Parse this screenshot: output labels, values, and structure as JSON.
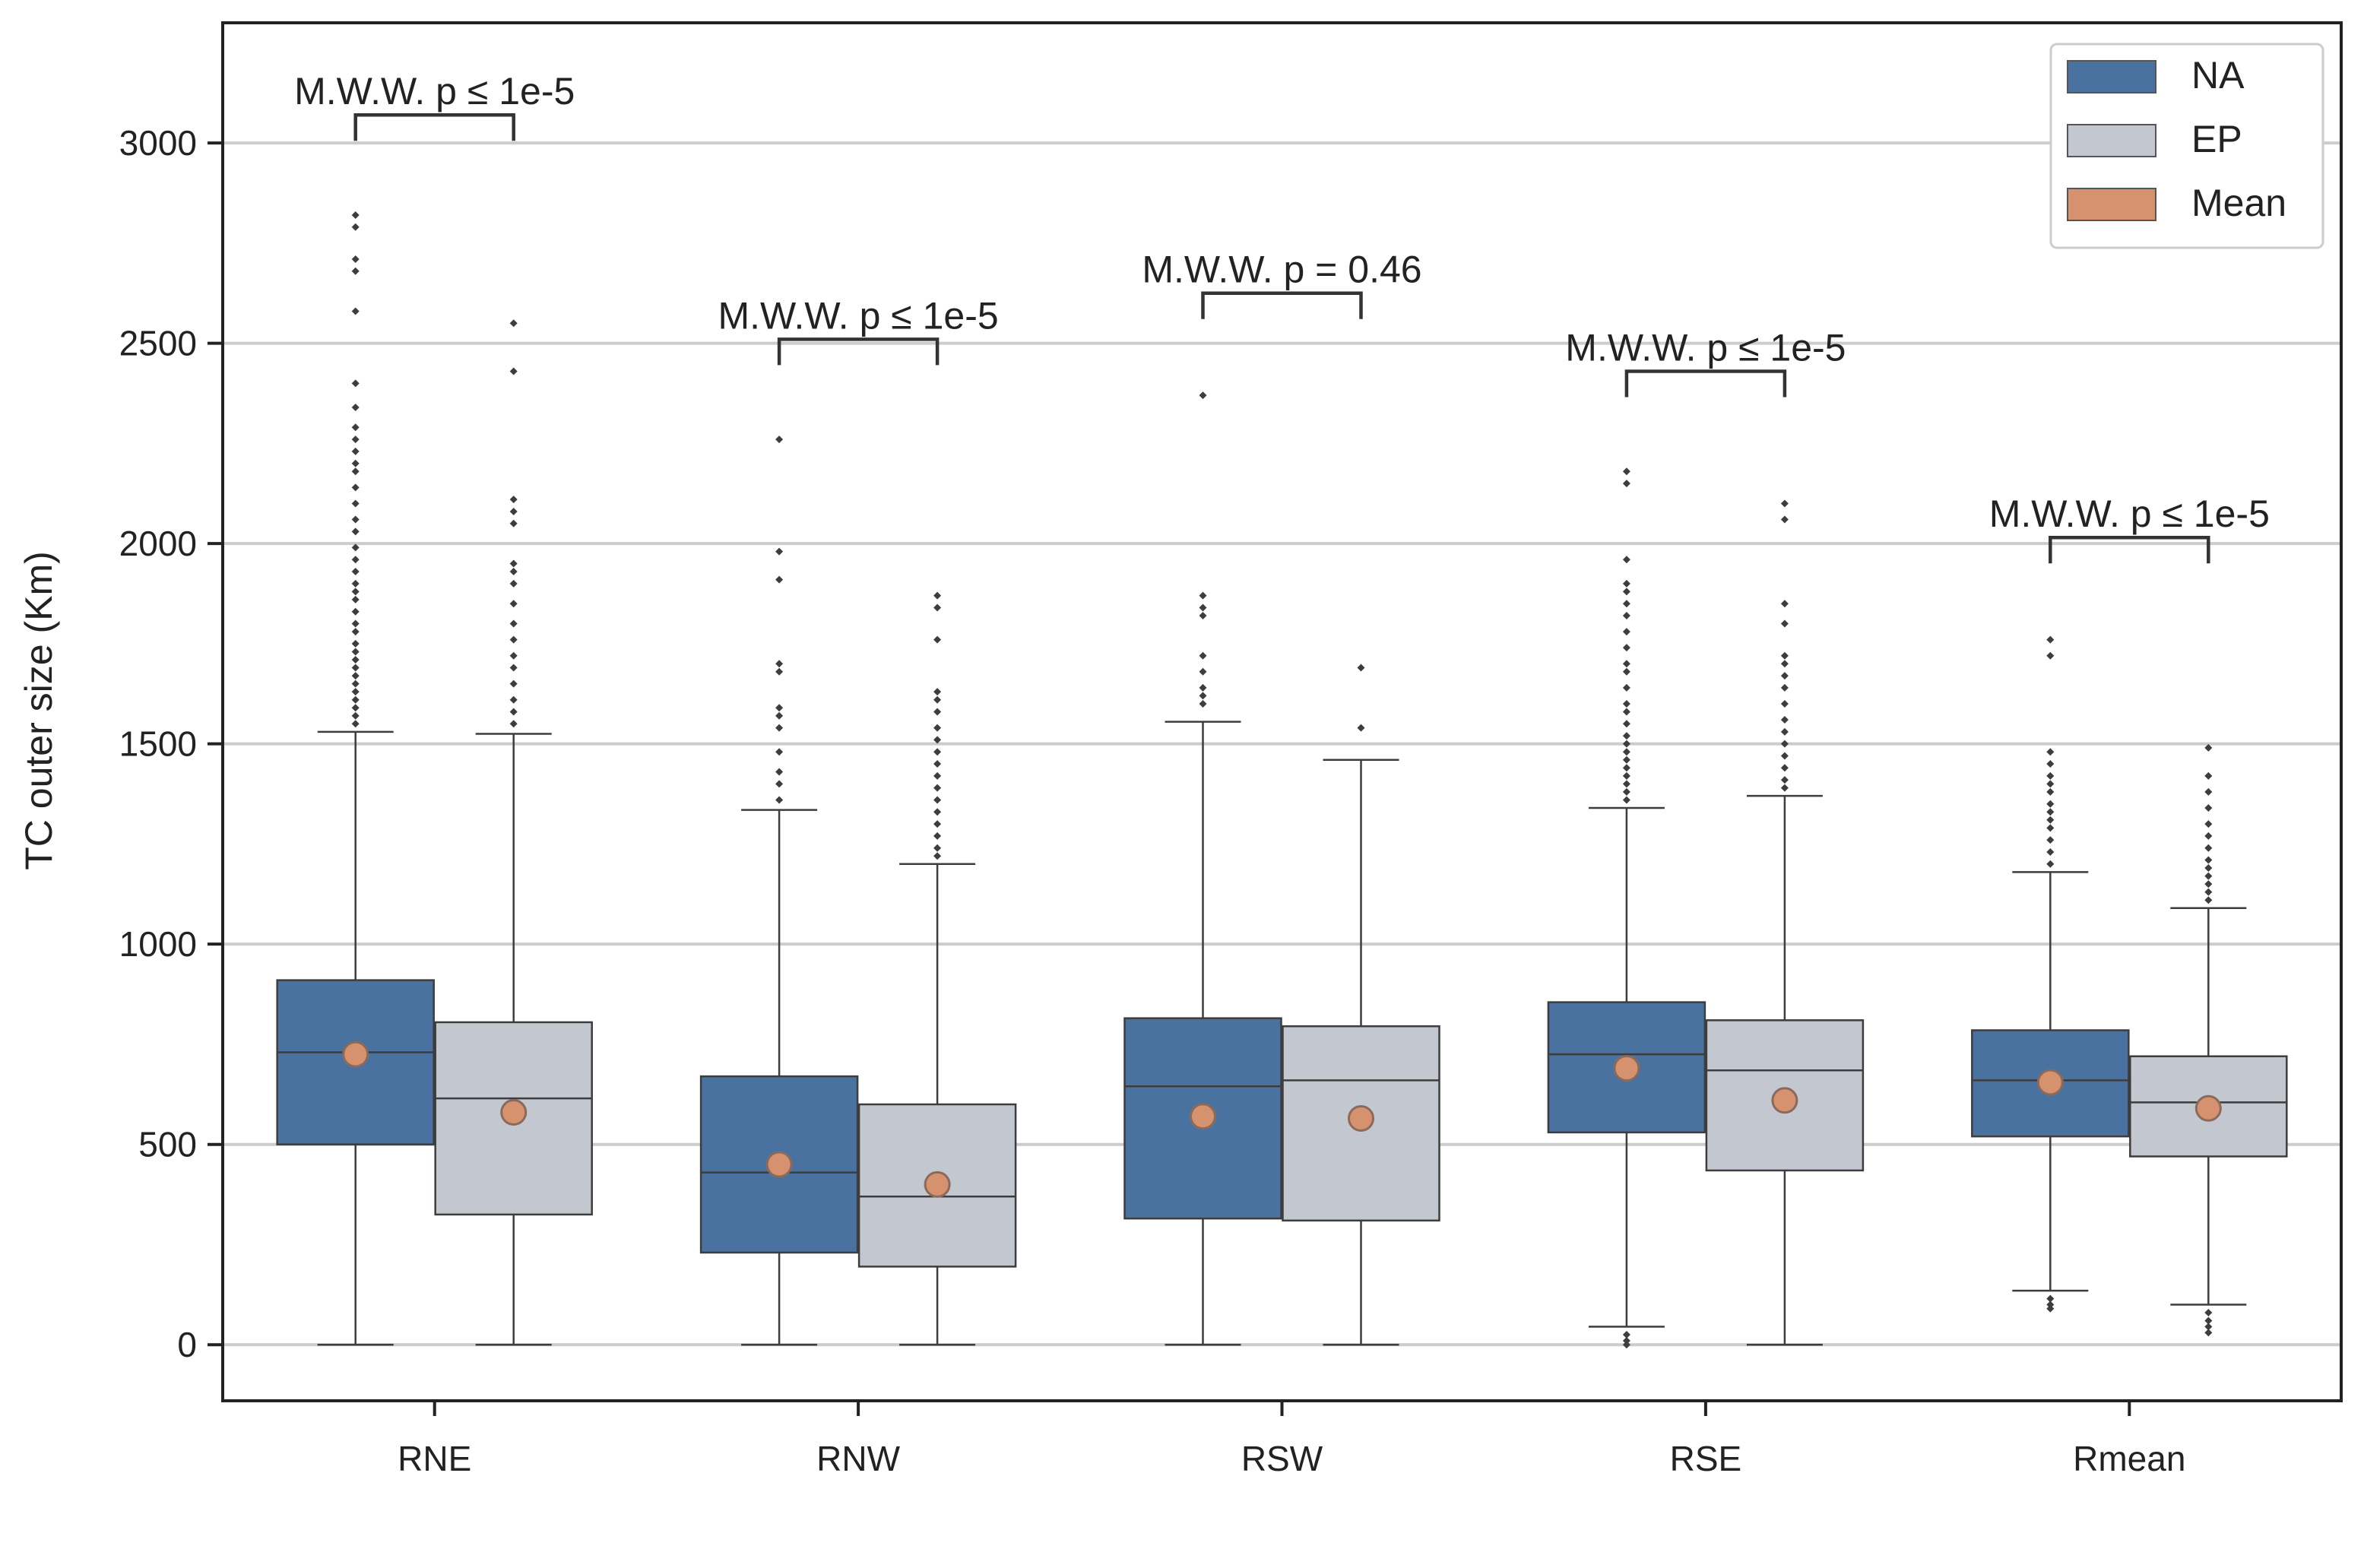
{
  "chart_data": {
    "type": "box",
    "title": "",
    "xlabel": "",
    "ylabel": "TC outer size (Km)",
    "ylim": [
      -140,
      3300
    ],
    "yticks": [
      0,
      500,
      1000,
      1500,
      2000,
      2500,
      3000
    ],
    "grid": "horizontal",
    "legend_position": "top-right",
    "categories": [
      "RNE",
      "RNW",
      "RSW",
      "RSE",
      "Rmean"
    ],
    "legend": [
      {
        "label": "NA",
        "color": "#4a72a0"
      },
      {
        "label": "EP",
        "color": "#c3c7d0"
      },
      {
        "label": "Mean",
        "color": "#d6926f"
      }
    ],
    "series": [
      {
        "name": "NA",
        "color": "#4a72a0",
        "boxes": [
          {
            "category": "RNE",
            "whisker_low": 0,
            "q1": 500,
            "median": 730,
            "q3": 910,
            "whisker_high": 1530,
            "mean": 725,
            "outliers": [
              1550,
              1570,
              1590,
              1610,
              1630,
              1650,
              1670,
              1690,
              1710,
              1730,
              1750,
              1780,
              1800,
              1830,
              1860,
              1880,
              1900,
              1930,
              1960,
              1990,
              2030,
              2060,
              2100,
              2140,
              2180,
              2200,
              2230,
              2260,
              2290,
              2340,
              2400,
              2580,
              2680,
              2710,
              2790,
              2820
            ]
          },
          {
            "category": "RNW",
            "whisker_low": 0,
            "q1": 230,
            "median": 430,
            "q3": 670,
            "whisker_high": 1335,
            "mean": 450,
            "outliers": [
              1360,
              1400,
              1430,
              1480,
              1540,
              1570,
              1590,
              1680,
              1700,
              1910,
              1980,
              2260
            ]
          },
          {
            "category": "RSW",
            "whisker_low": 0,
            "q1": 315,
            "median": 645,
            "q3": 815,
            "whisker_high": 1555,
            "mean": 570,
            "outliers": [
              1600,
              1620,
              1640,
              1680,
              1720,
              1820,
              1840,
              1870,
              2370
            ]
          },
          {
            "category": "RSE",
            "whisker_low": 45,
            "q1": 530,
            "median": 725,
            "q3": 855,
            "whisker_high": 1340,
            "mean": 690,
            "outliers": [
              0,
              10,
              25,
              1360,
              1380,
              1400,
              1420,
              1440,
              1460,
              1480,
              1500,
              1520,
              1550,
              1580,
              1600,
              1640,
              1680,
              1700,
              1740,
              1780,
              1820,
              1850,
              1880,
              1900,
              1960,
              2150,
              2180
            ]
          },
          {
            "category": "Rmean",
            "whisker_low": 135,
            "q1": 520,
            "median": 660,
            "q3": 785,
            "whisker_high": 1180,
            "mean": 655,
            "outliers": [
              90,
              100,
              115,
              1200,
              1230,
              1260,
              1290,
              1310,
              1330,
              1350,
              1380,
              1400,
              1420,
              1450,
              1480,
              1720,
              1760
            ]
          }
        ]
      },
      {
        "name": "EP",
        "color": "#c3c7d0",
        "boxes": [
          {
            "category": "RNE",
            "whisker_low": 0,
            "q1": 325,
            "median": 615,
            "q3": 805,
            "whisker_high": 1525,
            "mean": 580,
            "outliers": [
              1550,
              1580,
              1610,
              1650,
              1690,
              1720,
              1760,
              1800,
              1850,
              1900,
              1930,
              1950,
              2050,
              2080,
              2110,
              2430,
              2550
            ]
          },
          {
            "category": "RNW",
            "whisker_low": 0,
            "q1": 195,
            "median": 370,
            "q3": 600,
            "whisker_high": 1200,
            "mean": 400,
            "outliers": [
              1220,
              1240,
              1270,
              1300,
              1330,
              1360,
              1390,
              1420,
              1450,
              1480,
              1510,
              1540,
              1580,
              1610,
              1630,
              1760,
              1840,
              1870
            ]
          },
          {
            "category": "RSW",
            "whisker_low": 0,
            "q1": 310,
            "median": 660,
            "q3": 795,
            "whisker_high": 1460,
            "mean": 565,
            "outliers": [
              1540,
              1690
            ]
          },
          {
            "category": "RSE",
            "whisker_low": 0,
            "q1": 435,
            "median": 685,
            "q3": 810,
            "whisker_high": 1370,
            "mean": 610,
            "outliers": [
              1390,
              1410,
              1440,
              1470,
              1500,
              1530,
              1560,
              1600,
              1640,
              1670,
              1700,
              1720,
              1800,
              1850,
              2060,
              2100
            ]
          },
          {
            "category": "Rmean",
            "whisker_low": 100,
            "q1": 470,
            "median": 605,
            "q3": 720,
            "whisker_high": 1090,
            "mean": 590,
            "outliers": [
              30,
              45,
              60,
              80,
              1110,
              1130,
              1150,
              1170,
              1190,
              1210,
              1240,
              1270,
              1300,
              1340,
              1380,
              1420,
              1490
            ]
          }
        ]
      }
    ],
    "annotations": [
      {
        "category": "RNE",
        "text": "M.W.W. p ≤ 1e-5",
        "y": 3070
      },
      {
        "category": "RNW",
        "text": "M.W.W. p ≤ 1e-5",
        "y": 2510
      },
      {
        "category": "RSW",
        "text": "M.W.W. p = 0.46",
        "y": 2625
      },
      {
        "category": "RSE",
        "text": "M.W.W. p ≤ 1e-5",
        "y": 2430
      },
      {
        "category": "Rmean",
        "text": "M.W.W. p ≤ 1e-5",
        "y": 2015
      }
    ]
  }
}
